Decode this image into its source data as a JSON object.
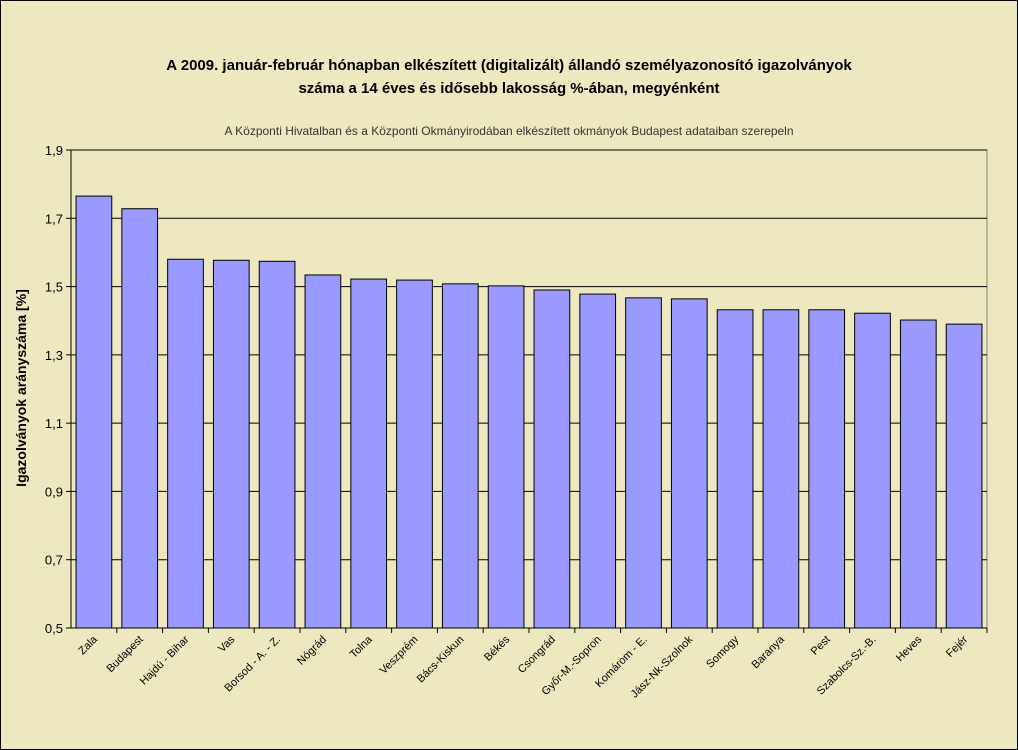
{
  "chart_data": {
    "type": "bar",
    "title_line1": "A 2009. január-február hónapban elkészített (digitalizált) állandó személyazonosító igazolványok",
    "title_line2": "száma a 14 éves és idősebb lakosság %-ában, megyénként",
    "subtitle": "A  Központi Hivatalban és a Központi Okmányirodában elkészített  okmányok Budapest adataiban szerepeln",
    "xlabel": "",
    "ylabel": "Igazolványok arányszáma [%]",
    "ylim": [
      0.5,
      1.9
    ],
    "yticks": [
      "0,5",
      "0,7",
      "0,9",
      "1,1",
      "1,3",
      "1,5",
      "1,7",
      "1,9"
    ],
    "ytick_values": [
      0.5,
      0.7,
      0.9,
      1.1,
      1.3,
      1.5,
      1.7,
      1.9
    ],
    "grid": true,
    "legend": "none",
    "bar_color": "#9999FF",
    "background_color": "#EEE8C0",
    "categories": [
      "Zala",
      "Budapest",
      "Hajdú - Bihar",
      "Vas",
      "Borsod - A. - Z.",
      "Nógrád",
      "Tolna",
      "Veszprém",
      "Bács-Kiskun",
      "Békés",
      "Csongrád",
      "Győr-M.-Sopron",
      "Komárom - E.",
      "Jász-Nk-Szolnok",
      "Somogy",
      "Baranya",
      "Pest",
      "Szabolcs-Sz.-B.",
      "Heves",
      "Fejér"
    ],
    "values": [
      1.765,
      1.728,
      1.58,
      1.577,
      1.574,
      1.534,
      1.522,
      1.519,
      1.508,
      1.502,
      1.49,
      1.478,
      1.467,
      1.464,
      1.432,
      1.432,
      1.432,
      1.422,
      1.402,
      1.39
    ]
  }
}
